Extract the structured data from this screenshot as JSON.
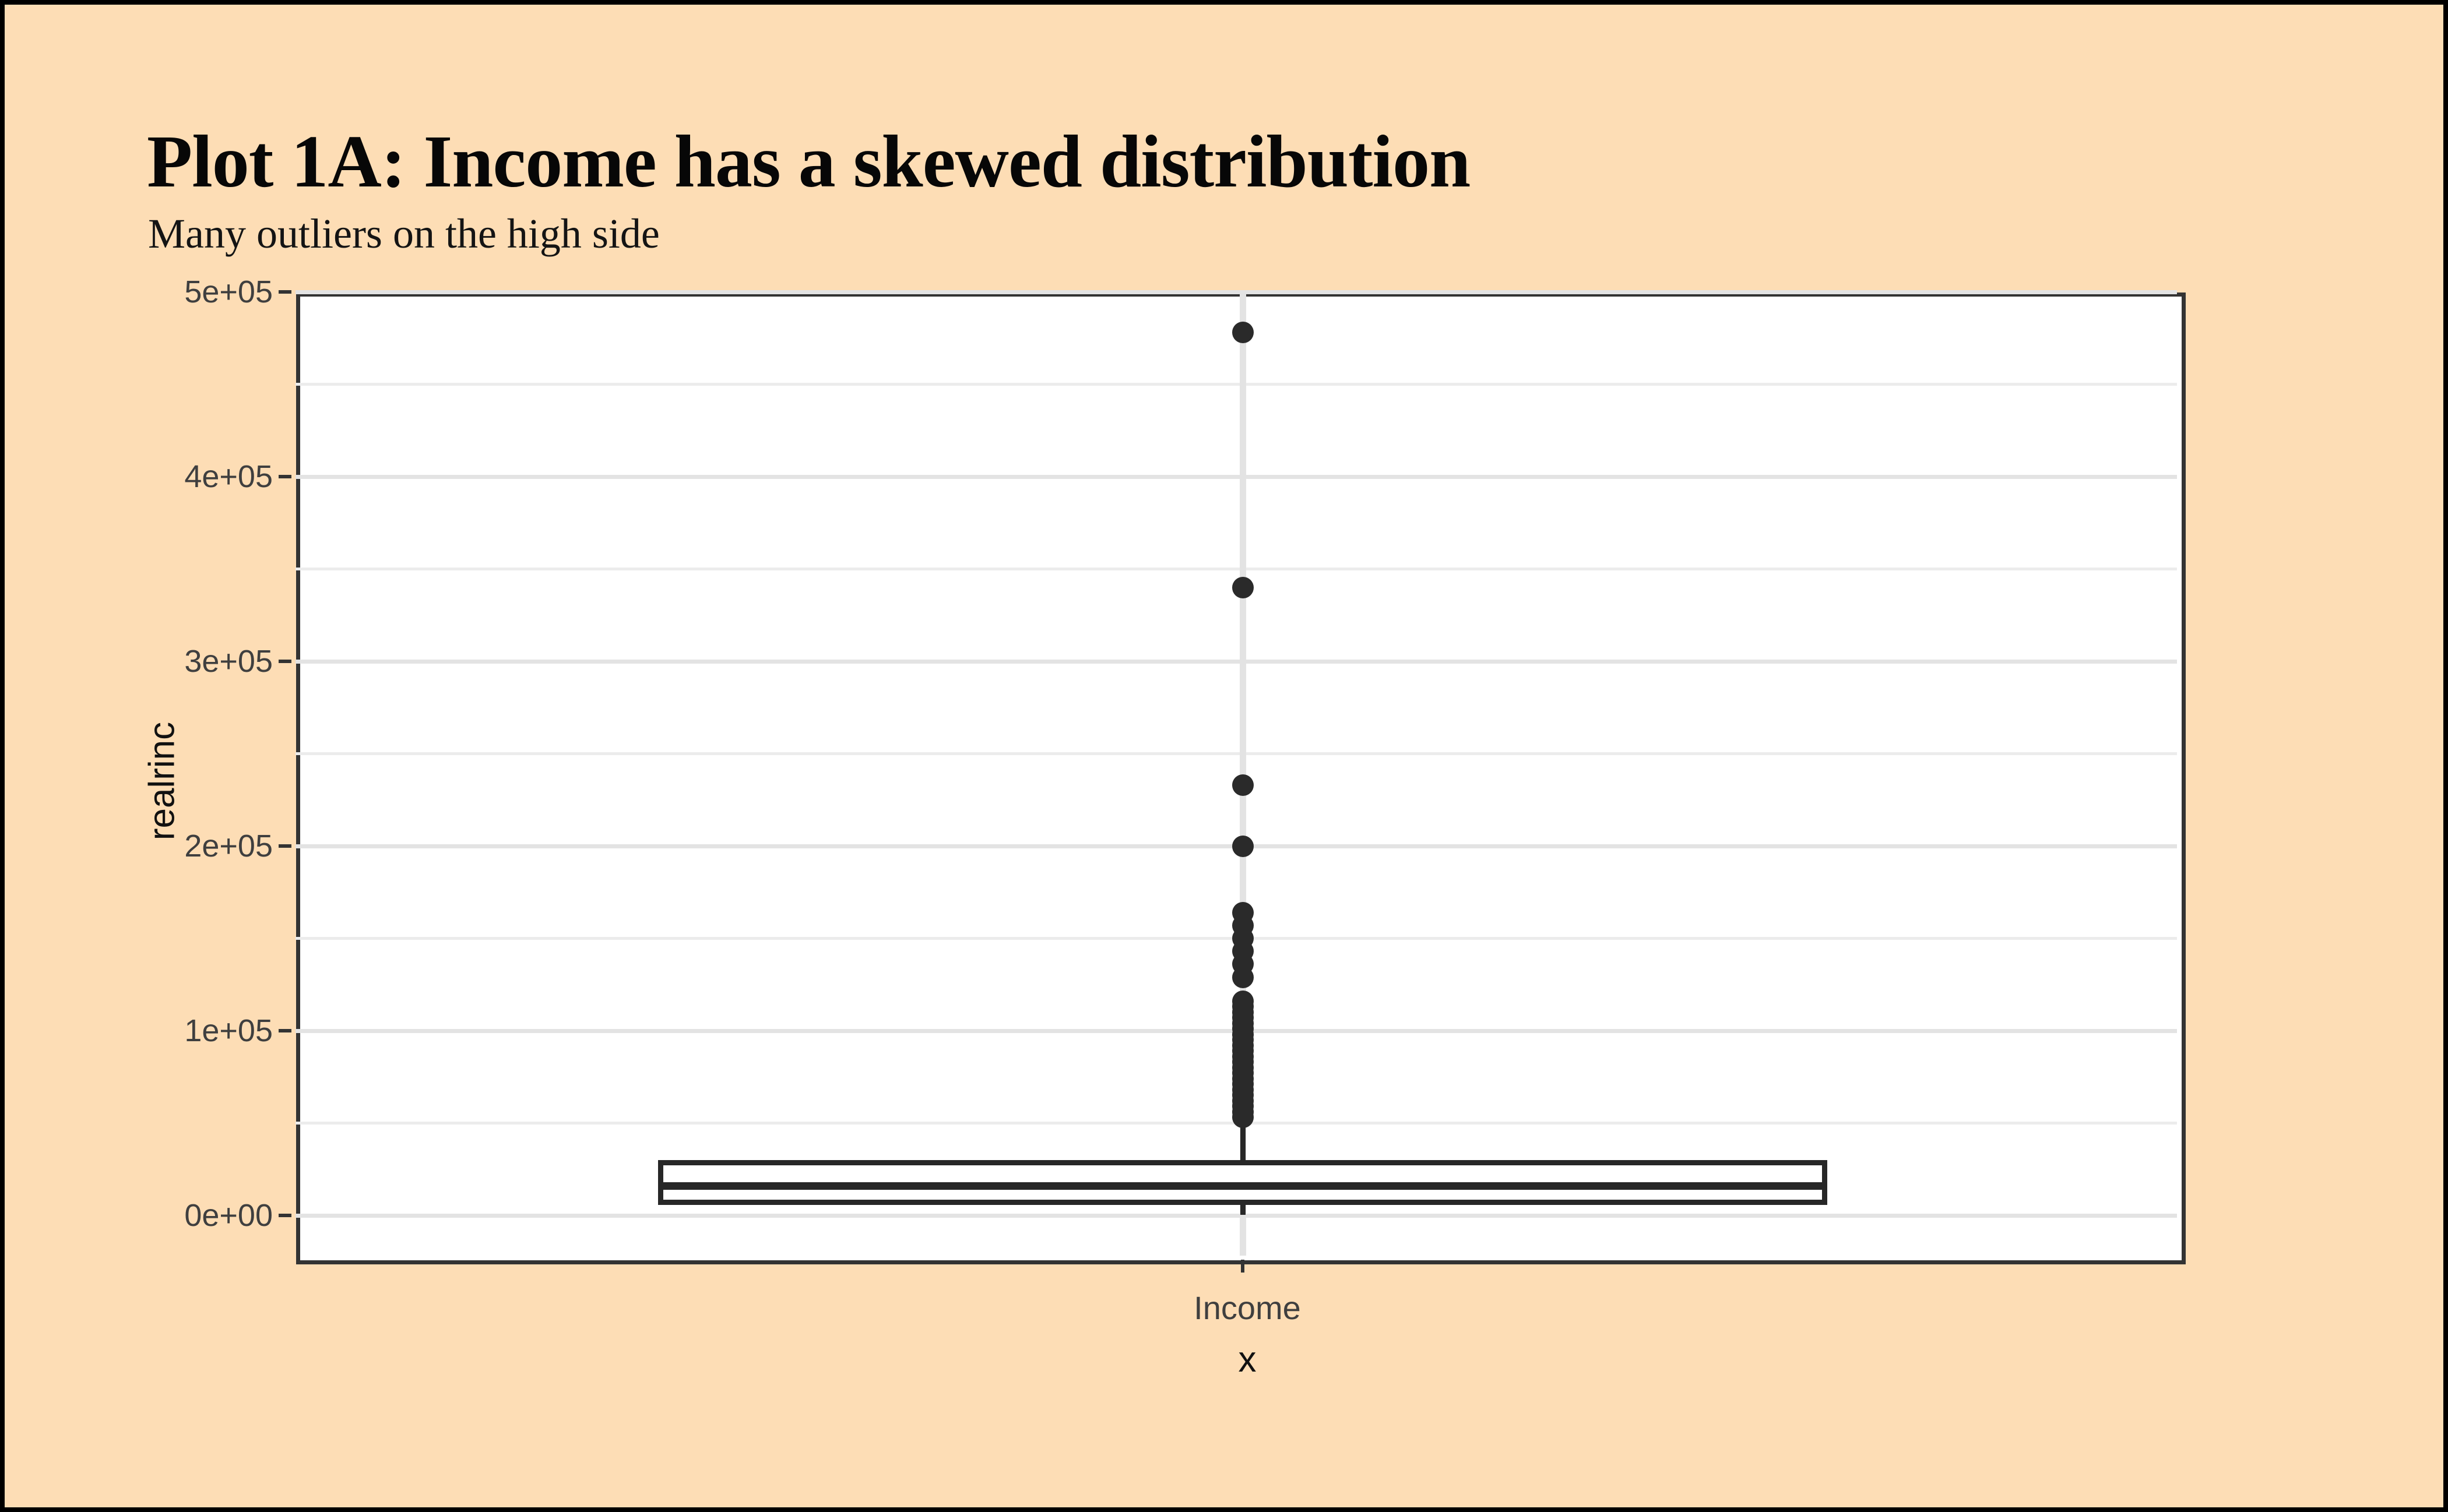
{
  "header": {
    "title": "Plot 1A: Income has a skewed distribution",
    "subtitle": "Many outliers on the high side"
  },
  "colors": {
    "page_background": "#FDDDB5",
    "outer_border": "#000000",
    "panel_background": "#FFFFFF",
    "panel_border": "#333333",
    "grid_major": "#E3E3E3",
    "grid_minor": "#ECECEC",
    "axis_text": "#3F3F3F",
    "ink": "#272727"
  },
  "chart_data": {
    "type": "boxplot",
    "title": "Plot 1A: Income has a skewed distribution",
    "subtitle": "Many outliers on the high side",
    "orientation": "vertical",
    "grid": "on",
    "x_axis": {
      "title": "x",
      "categories": [
        "Income"
      ]
    },
    "y_axis": {
      "title": "realrinc",
      "range": [
        0,
        500000
      ],
      "ticks": [
        {
          "value": 0,
          "label": "0e+00"
        },
        {
          "value": 100000,
          "label": "1e+05"
        },
        {
          "value": 200000,
          "label": "2e+05"
        },
        {
          "value": 300000,
          "label": "3e+05"
        },
        {
          "value": 400000,
          "label": "4e+05"
        },
        {
          "value": 500000,
          "label": "5e+05"
        }
      ],
      "minor_ticks": [
        50000,
        150000,
        250000,
        350000,
        450000
      ]
    },
    "box": {
      "category": "Income",
      "q1": 7000,
      "median": 16000,
      "q3": 28500,
      "whisker_low": 300,
      "whisker_high": 47500
    },
    "outliers": [
      478000,
      340000,
      233000,
      200000,
      164000,
      157000,
      150000,
      143000,
      136000,
      129000,
      116000,
      113000,
      110000,
      107000,
      104000,
      101000,
      98000,
      95000,
      92000,
      89000,
      86000,
      83000,
      80000,
      77000,
      74000,
      71000,
      68000,
      65000,
      62000,
      59000,
      56000,
      53000
    ]
  }
}
